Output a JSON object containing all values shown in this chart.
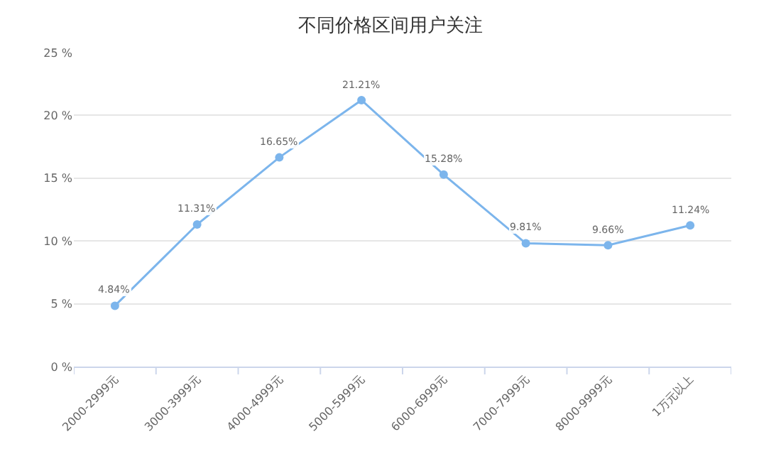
{
  "chart_data": {
    "type": "line",
    "title": "不同价格区间用户关注",
    "categories": [
      "2000-2999元",
      "3000-3999元",
      "4000-4999元",
      "5000-5999元",
      "6000-6999元",
      "7000-7999元",
      "8000-9999元",
      "1万元以上"
    ],
    "series": [
      {
        "color": "#7cb5ec",
        "values": [
          4.84,
          11.31,
          16.65,
          21.21,
          15.28,
          9.81,
          9.66,
          11.24
        ],
        "value_labels": [
          "4.84%",
          "11.31%",
          "16.65%",
          "21.21%",
          "15.28%",
          "9.81%",
          "9.66%",
          "11.24%"
        ]
      }
    ],
    "ylim": [
      0,
      25
    ],
    "yticks": [
      {
        "value": 0,
        "label": "0 %"
      },
      {
        "value": 5,
        "label": "5 %"
      },
      {
        "value": 10,
        "label": "10 %"
      },
      {
        "value": 15,
        "label": "15 %"
      },
      {
        "value": 20,
        "label": "20 %"
      },
      {
        "value": 25,
        "label": "25 %"
      }
    ],
    "grid": "y",
    "marker": "circle",
    "line_style": "solid"
  }
}
